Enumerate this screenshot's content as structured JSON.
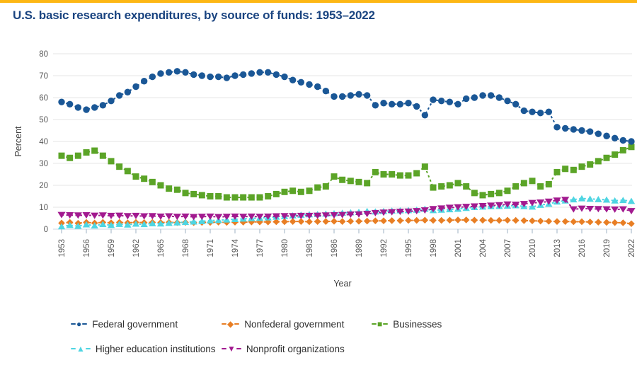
{
  "title": "U.S. basic research expenditures, by source of funds: 1953–2022",
  "accent_color": "#FDB714",
  "title_color": "#1A4480",
  "axis_text_color": "#595959",
  "axis_title_color": "#404040",
  "gridline_color": "#e4e4e4",
  "axisline_color": "#cdd7e0",
  "tick_color": "#b9c7d4",
  "chart_data": {
    "type": "line",
    "title": "U.S. basic research expenditures, by source of funds: 1953–2022",
    "xlabel": "Year",
    "ylabel": "Percent",
    "ylim": [
      0,
      80
    ],
    "ytick_interval": 10,
    "grid": "horizontal",
    "legend_position": "bottom",
    "x_range": [
      1953,
      2022
    ],
    "x_tick_years": [
      1953,
      1956,
      1959,
      1962,
      1965,
      1968,
      1971,
      1974,
      1977,
      1980,
      1983,
      1986,
      1989,
      1992,
      1995,
      1998,
      2001,
      2004,
      2007,
      2010,
      2013,
      2016,
      2019,
      2022
    ],
    "series": [
      {
        "name": "Federal government",
        "color": "#1A5796",
        "marker": "circle",
        "values": [
          58,
          57,
          55.5,
          54.5,
          55.5,
          56.5,
          58.5,
          61,
          62.5,
          65,
          67.5,
          69.5,
          71,
          71.5,
          72,
          71.5,
          70.5,
          70,
          69.5,
          69.5,
          69,
          70,
          70.5,
          71,
          71.5,
          71.5,
          70.5,
          69.5,
          68,
          67,
          66,
          65,
          63,
          60.5,
          60.5,
          61,
          61.5,
          61,
          56.5,
          57.5,
          57,
          57,
          57.5,
          56,
          52,
          59,
          58.5,
          58,
          57,
          59.5,
          60,
          61,
          61,
          60,
          58.5,
          57,
          54,
          53.5,
          53,
          53.5,
          46.5,
          46,
          45.5,
          45,
          44.5,
          43.5,
          42.5,
          41.5,
          40.5,
          40
        ]
      },
      {
        "name": "Nonfederal government",
        "color": "#E87E24",
        "marker": "diamond",
        "values": [
          2.8,
          3.1,
          2.7,
          3.1,
          2.8,
          3.1,
          2.9,
          3.1,
          2.9,
          3.1,
          3,
          3.1,
          3,
          3.1,
          3,
          3.1,
          3,
          3.1,
          3.1,
          3.2,
          3.1,
          3.2,
          3.2,
          3.3,
          3.3,
          3.3,
          3.4,
          3.4,
          3.5,
          3.5,
          3.4,
          3.5,
          3.5,
          3.6,
          3.5,
          3.6,
          3.6,
          3.7,
          3.8,
          3.8,
          3.9,
          3.9,
          4,
          4,
          4.1,
          4,
          4,
          4.1,
          4.2,
          4.2,
          4.1,
          4.1,
          4,
          4,
          4.1,
          4,
          3.9,
          3.8,
          3.7,
          3.6,
          3.5,
          3.5,
          3.4,
          3.4,
          3.3,
          3.2,
          3.1,
          3,
          2.9,
          2.5
        ]
      },
      {
        "name": "Businesses",
        "color": "#5BA427",
        "marker": "square",
        "values": [
          33.5,
          32.5,
          33.5,
          35,
          35.8,
          33.5,
          31,
          28.5,
          26.5,
          24,
          23,
          21.5,
          20,
          18.5,
          18,
          16.5,
          16,
          15.5,
          15,
          15,
          14.5,
          14.5,
          14.5,
          14.5,
          14.5,
          15,
          16,
          17,
          17.5,
          17,
          17.5,
          19,
          19.5,
          24,
          22.5,
          22,
          21.5,
          21,
          26,
          25,
          25,
          24.5,
          24.5,
          25.5,
          28.5,
          19,
          19.5,
          20,
          21,
          19.5,
          16.5,
          15.5,
          16,
          16.5,
          17.5,
          19.5,
          21,
          22,
          19.5,
          20.5,
          26,
          27.5,
          27,
          28.5,
          29.5,
          31,
          32.5,
          34,
          36,
          37.5
        ]
      },
      {
        "name": "Higher education institutions",
        "color": "#4ED5E2",
        "marker": "triangle-up",
        "values": [
          1.2,
          1.8,
          1.4,
          2.1,
          1.6,
          2.2,
          1.8,
          2.3,
          2,
          2.4,
          2.2,
          2.6,
          2.5,
          2.8,
          3,
          3.2,
          3.4,
          3.6,
          3.9,
          4.1,
          4.3,
          4.5,
          4.7,
          4.9,
          5.1,
          5.3,
          5.6,
          5.9,
          6.2,
          6.5,
          6.7,
          6.8,
          7,
          7.2,
          7.4,
          7.6,
          7.8,
          8.2,
          8,
          8.2,
          8.4,
          8.5,
          8.6,
          8.8,
          9.2,
          8.6,
          8.8,
          9,
          9.2,
          9.6,
          10,
          10.2,
          10.4,
          10.5,
          10.6,
          10.8,
          10.4,
          10.2,
          11,
          11.5,
          12.5,
          13,
          13.5,
          14,
          13.8,
          13.6,
          13.4,
          13,
          13.2,
          12.8
        ]
      },
      {
        "name": "Nonprofit organizations",
        "color": "#A21A8F",
        "marker": "triangle-down",
        "values": [
          6.5,
          6.4,
          6.3,
          6.4,
          6.2,
          6.3,
          6.1,
          6.2,
          6,
          6.1,
          5.9,
          6,
          5.8,
          5.9,
          5.7,
          5.8,
          5.6,
          5.7,
          5.8,
          5.6,
          5.7,
          5.8,
          5.7,
          5.8,
          5.7,
          5.8,
          5.9,
          6,
          6,
          6.1,
          6.1,
          6.2,
          6.3,
          6.4,
          6.5,
          6.7,
          6.8,
          7,
          7.4,
          7.6,
          7.8,
          8,
          8.1,
          8.3,
          8.6,
          9.2,
          9.5,
          9.8,
          10,
          10.2,
          10.4,
          10.6,
          10.8,
          11,
          11.3,
          11.2,
          11.5,
          12,
          12.2,
          12.6,
          13.1,
          13.4,
          9.1,
          9.4,
          9.3,
          9.2,
          9.1,
          9,
          9.1,
          8.3
        ]
      }
    ]
  }
}
